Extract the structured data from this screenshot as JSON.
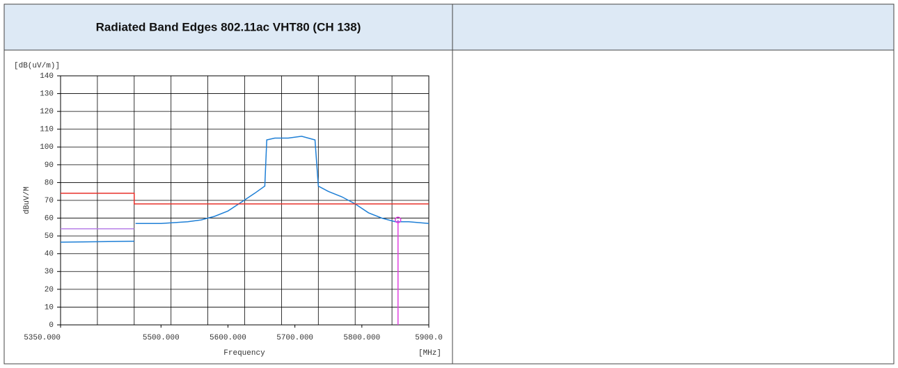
{
  "header": {
    "title": "Radiated Band Edges 802.11ac VHT80 (CH 138)"
  },
  "chart_data": {
    "type": "line",
    "y_unit": "[dB(uV/m)]",
    "ylabel": "dBuV/M",
    "xlabel": "Frequency",
    "x_unit": "[MHz]",
    "xlim": [
      5350,
      5900
    ],
    "ylim": [
      0,
      140
    ],
    "xticks": [
      {
        "value": 5350,
        "label": "5350.000"
      },
      {
        "value": 5500,
        "label": "5500.000"
      },
      {
        "value": 5600,
        "label": "5600.000"
      },
      {
        "value": 5700,
        "label": "5700.000"
      },
      {
        "value": 5800,
        "label": "5800.000"
      },
      {
        "value": 5900,
        "label": "5900.0"
      }
    ],
    "xgrid": [
      5350,
      5405,
      5460,
      5515,
      5570,
      5625,
      5680,
      5735,
      5790,
      5845,
      5900
    ],
    "yticks": [
      0,
      10,
      20,
      30,
      40,
      50,
      60,
      70,
      80,
      90,
      100,
      110,
      120,
      130,
      140
    ],
    "grid": true,
    "series": [
      {
        "color": "#1e7fd6",
        "x": [
          5350,
          5460,
          null,
          5462,
          5480,
          5500,
          5520,
          5540,
          5560,
          5580,
          5600,
          5620,
          5640,
          5655,
          5658,
          5670,
          5690,
          5710,
          5730,
          5735,
          5750,
          5770,
          5790,
          5810,
          5830,
          5850,
          5870,
          5900
        ],
        "values": [
          46.5,
          47,
          null,
          57,
          57,
          57,
          57.5,
          58,
          59,
          61,
          64,
          69,
          74,
          78,
          104,
          105,
          105,
          106,
          104,
          78,
          75,
          72,
          68,
          63,
          60,
          58,
          58,
          57
        ]
      },
      {
        "color": "#e8302a",
        "x": [
          5350,
          5460,
          5460,
          5900
        ],
        "values": [
          74,
          74,
          68,
          68
        ]
      },
      {
        "color": "#b77ee8",
        "x": [
          5350,
          5460
        ],
        "values": [
          54,
          54
        ]
      }
    ],
    "marker": {
      "color": "#e040e0",
      "x": 5854,
      "value": 59
    }
  }
}
